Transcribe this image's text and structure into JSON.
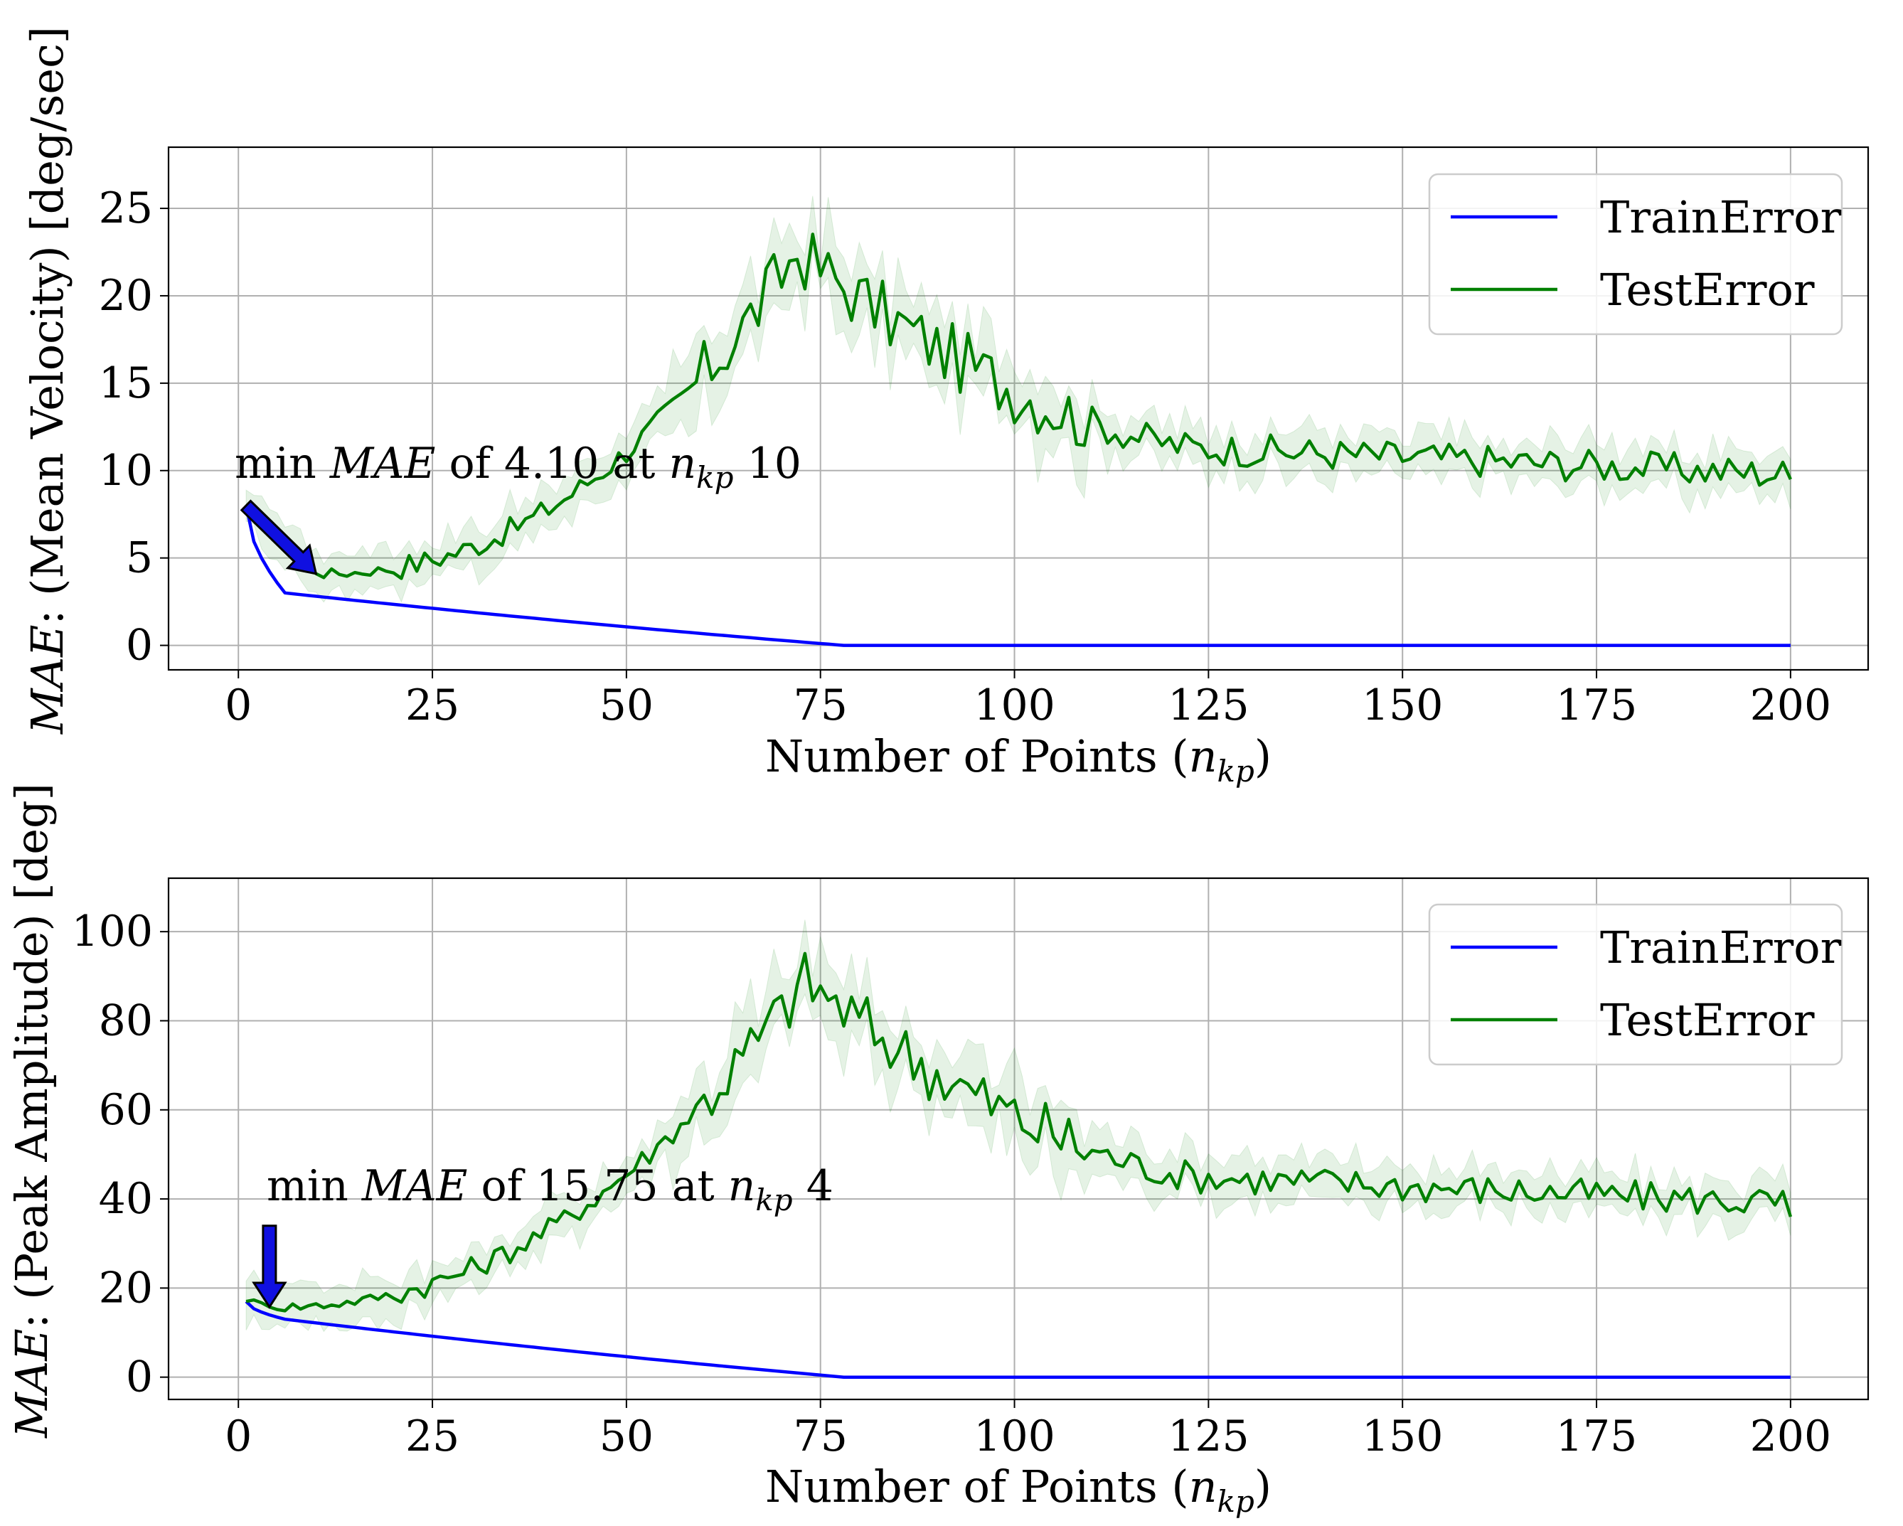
{
  "chart_data": [
    {
      "type": "line",
      "xlabel": "Number of Points (",
      "xlabel_var": "n",
      "xlabel_sub": "kp",
      "xlabel_close": ")",
      "ylabel_var": "MAE",
      "ylabel_text": ": (Mean Velocity) [deg/sec]",
      "xlim": [
        -9,
        210
      ],
      "ylim": [
        -1.4,
        28.5
      ],
      "xticks": [
        0,
        25,
        50,
        75,
        100,
        125,
        150,
        175,
        200
      ],
      "yticks": [
        0,
        5,
        10,
        15,
        20,
        25
      ],
      "grid": true,
      "legend": {
        "position": "top-right",
        "entries": [
          "TrainError",
          "TestError"
        ]
      },
      "annotation": {
        "prefix": "min ",
        "var": "MAE",
        "middle": " of 4.10 at ",
        "sub_var": "n",
        "sub": "kp",
        "suffix": " 10",
        "x": 10,
        "y": 4.1,
        "arrow_from": [
          1,
          8
        ]
      },
      "series": [
        {
          "name": "TrainError",
          "color": "#0000ff",
          "shape": "train",
          "start": 8,
          "knee": 3.0,
          "knee_x": 6,
          "zero_x": 78
        },
        {
          "name": "TestError",
          "color": "#008000",
          "shape": "test",
          "start": 8,
          "low": 4.1,
          "low_x": 10,
          "peak": 22.5,
          "peak_x": 72,
          "tail": 9.8,
          "noise": 1.2,
          "band": 1.2,
          "final": 9.5
        }
      ]
    },
    {
      "type": "line",
      "xlabel": "Number of Points (",
      "xlabel_var": "n",
      "xlabel_sub": "kp",
      "xlabel_close": ")",
      "ylabel_var": "MAE",
      "ylabel_text": ": (Peak Amplitude) [deg]",
      "xlim": [
        -9,
        210
      ],
      "ylim": [
        -5,
        112
      ],
      "xticks": [
        0,
        25,
        50,
        75,
        100,
        125,
        150,
        175,
        200
      ],
      "yticks": [
        0,
        20,
        40,
        60,
        80,
        100
      ],
      "grid": true,
      "legend": {
        "position": "top-right",
        "entries": [
          "TrainError",
          "TestError"
        ]
      },
      "annotation": {
        "prefix": "min ",
        "var": "MAE",
        "middle": " of 15.75 at ",
        "sub_var": "n",
        "sub": "kp",
        "suffix": " 4",
        "x": 4,
        "y": 15.75,
        "arrow_from": [
          4,
          34
        ]
      },
      "series": [
        {
          "name": "TrainError",
          "color": "#0000ff",
          "shape": "train",
          "start": 17,
          "knee": 13,
          "knee_x": 6,
          "zero_x": 78
        },
        {
          "name": "TestError",
          "color": "#008000",
          "shape": "test",
          "start": 17,
          "low": 15.75,
          "low_x": 4,
          "peak": 89,
          "peak_x": 73,
          "tail": 39,
          "noise": 4.5,
          "band": 4.5,
          "final": 36
        }
      ]
    }
  ]
}
